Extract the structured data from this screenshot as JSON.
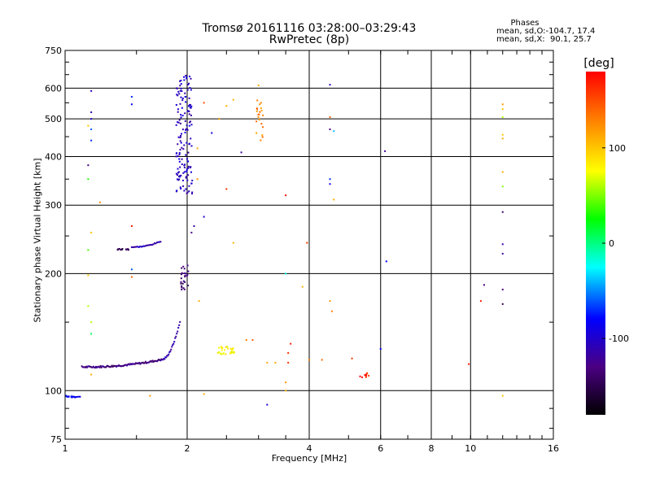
{
  "chart_data": {
    "type": "scatter",
    "title": "Tromsø 20161116 03:28:00–03:29:43",
    "subtitle": "RwPretec (8p)",
    "xlabel": "Frequency [MHz]",
    "ylabel": "Stationary phase Virtual Height [km]",
    "x_scale": "log2",
    "y_scale": "log",
    "xlim": [
      1,
      16
    ],
    "ylim": [
      75,
      750
    ],
    "x_ticks": [
      1,
      2,
      4,
      6,
      8,
      10,
      16
    ],
    "x_tick_labels": [
      "1",
      "2",
      "4",
      "6",
      "8",
      "10",
      "16"
    ],
    "y_ticks": [
      75,
      100,
      200,
      300,
      400,
      500,
      600,
      750
    ],
    "y_tick_labels": [
      "75",
      "100",
      "200",
      "300",
      "400",
      "500",
      "600",
      "750"
    ],
    "grid": true,
    "colorbar": {
      "label": "[deg]",
      "range": [
        -180,
        180
      ],
      "ticks": [
        100,
        0,
        -100
      ],
      "tick_labels": [
        "100",
        "0",
        "-100"
      ]
    },
    "phases_box": {
      "title": "Phases",
      "o_line": "mean, sd,O:-104.7, 17.4",
      "x_line": "mean, sd,X:  90.1, 25.7"
    },
    "traces": [
      {
        "x_range": [
          1.0,
          1.09
        ],
        "y_range": [
          96,
          97
        ],
        "count": 20,
        "phase": -80
      },
      {
        "x_range": [
          1.1,
          1.72
        ],
        "y_range": [
          115,
          120
        ],
        "count": 90,
        "phase": -130,
        "trend": "rising"
      },
      {
        "x_range": [
          1.72,
          1.92
        ],
        "y_range": [
          120,
          150
        ],
        "count": 25,
        "phase": -115,
        "trend": "rising"
      },
      {
        "x_range": [
          1.93,
          2.02
        ],
        "y_range": [
          182,
          210
        ],
        "count": 25,
        "phase": -135
      },
      {
        "x_range": [
          1.34,
          1.44
        ],
        "y_range": [
          230,
          232
        ],
        "count": 14,
        "phase": -140
      },
      {
        "x_range": [
          1.46,
          1.72
        ],
        "y_range": [
          234,
          242
        ],
        "count": 25,
        "phase": -110,
        "trend": "rising"
      },
      {
        "x_range": [
          1.88,
          2.06
        ],
        "y_range": [
          320,
          650
        ],
        "count": 150,
        "phase": -105
      },
      {
        "x_range": [
          2.38,
          2.62
        ],
        "y_range": [
          124,
          130
        ],
        "count": 30,
        "phase": 80
      },
      {
        "x_range": [
          2.95,
          3.08
        ],
        "y_range": [
          440,
          560
        ],
        "count": 22,
        "phase": 130
      },
      {
        "x_range": [
          5.3,
          5.65
        ],
        "y_range": [
          108,
          111
        ],
        "count": 10,
        "phase": 170
      }
    ],
    "scattered_points": [
      {
        "x": 1.16,
        "y": 590,
        "phase": -110
      },
      {
        "x": 1.16,
        "y": 520,
        "phase": -110
      },
      {
        "x": 1.16,
        "y": 500,
        "phase": -100
      },
      {
        "x": 1.16,
        "y": 470,
        "phase": -60
      },
      {
        "x": 1.16,
        "y": 440,
        "phase": -70
      },
      {
        "x": 1.14,
        "y": 480,
        "phase": 100
      },
      {
        "x": 1.14,
        "y": 380,
        "phase": -130
      },
      {
        "x": 1.14,
        "y": 350,
        "phase": 30
      },
      {
        "x": 1.46,
        "y": 570,
        "phase": -70
      },
      {
        "x": 1.46,
        "y": 545,
        "phase": -80
      },
      {
        "x": 1.46,
        "y": 265,
        "phase": 170
      },
      {
        "x": 1.46,
        "y": 205,
        "phase": -60
      },
      {
        "x": 1.46,
        "y": 196,
        "phase": 140
      },
      {
        "x": 1.14,
        "y": 230,
        "phase": 40
      },
      {
        "x": 1.14,
        "y": 198,
        "phase": 100
      },
      {
        "x": 1.14,
        "y": 165,
        "phase": 60
      },
      {
        "x": 1.16,
        "y": 150,
        "phase": 60
      },
      {
        "x": 1.16,
        "y": 140,
        "phase": 10
      },
      {
        "x": 1.16,
        "y": 255,
        "phase": 100
      },
      {
        "x": 1.22,
        "y": 305,
        "phase": 120
      },
      {
        "x": 1.16,
        "y": 110,
        "phase": 110
      },
      {
        "x": 1.62,
        "y": 97,
        "phase": 120
      },
      {
        "x": 2.2,
        "y": 98,
        "phase": 110
      },
      {
        "x": 2.12,
        "y": 420,
        "phase": 110
      },
      {
        "x": 2.12,
        "y": 350,
        "phase": 120
      },
      {
        "x": 2.2,
        "y": 550,
        "phase": 150
      },
      {
        "x": 2.08,
        "y": 265,
        "phase": -120
      },
      {
        "x": 2.05,
        "y": 255,
        "phase": -130
      },
      {
        "x": 2.2,
        "y": 280,
        "phase": -100
      },
      {
        "x": 2.14,
        "y": 170,
        "phase": 110
      },
      {
        "x": 2.3,
        "y": 460,
        "phase": -90
      },
      {
        "x": 2.72,
        "y": 410,
        "phase": -120
      },
      {
        "x": 2.6,
        "y": 560,
        "phase": 110
      },
      {
        "x": 2.5,
        "y": 540,
        "phase": 110
      },
      {
        "x": 2.5,
        "y": 330,
        "phase": 160
      },
      {
        "x": 2.6,
        "y": 240,
        "phase": 110
      },
      {
        "x": 2.4,
        "y": 500,
        "phase": 120
      },
      {
        "x": 2.9,
        "y": 135,
        "phase": 140
      },
      {
        "x": 2.8,
        "y": 135,
        "phase": 130
      },
      {
        "x": 3.0,
        "y": 610,
        "phase": 110
      },
      {
        "x": 3.15,
        "y": 118,
        "phase": 110
      },
      {
        "x": 3.3,
        "y": 118,
        "phase": 110
      },
      {
        "x": 3.15,
        "y": 92,
        "phase": -100
      },
      {
        "x": 3.5,
        "y": 318,
        "phase": 175
      },
      {
        "x": 3.5,
        "y": 200,
        "phase": -20
      },
      {
        "x": 3.5,
        "y": 105,
        "phase": 120
      },
      {
        "x": 3.5,
        "y": 100,
        "phase": 110
      },
      {
        "x": 3.55,
        "y": 125,
        "phase": 160
      },
      {
        "x": 3.55,
        "y": 118,
        "phase": 160
      },
      {
        "x": 3.6,
        "y": 132,
        "phase": 170
      },
      {
        "x": 3.85,
        "y": 185,
        "phase": 110
      },
      {
        "x": 3.95,
        "y": 240,
        "phase": 160
      },
      {
        "x": 4.0,
        "y": 120,
        "phase": 130
      },
      {
        "x": 4.5,
        "y": 612,
        "phase": -110
      },
      {
        "x": 4.5,
        "y": 470,
        "phase": -130
      },
      {
        "x": 4.6,
        "y": 465,
        "phase": -40
      },
      {
        "x": 4.5,
        "y": 350,
        "phase": -70
      },
      {
        "x": 4.5,
        "y": 340,
        "phase": -90
      },
      {
        "x": 4.6,
        "y": 310,
        "phase": 110
      },
      {
        "x": 4.5,
        "y": 170,
        "phase": 120
      },
      {
        "x": 4.55,
        "y": 160,
        "phase": 130
      },
      {
        "x": 4.3,
        "y": 120,
        "phase": 140
      },
      {
        "x": 4.5,
        "y": 505,
        "phase": 140
      },
      {
        "x": 5.1,
        "y": 121,
        "phase": 160
      },
      {
        "x": 6.0,
        "y": 128,
        "phase": -80
      },
      {
        "x": 6.15,
        "y": 413,
        "phase": -120
      },
      {
        "x": 6.2,
        "y": 215,
        "phase": -80
      },
      {
        "x": 9.9,
        "y": 117,
        "phase": 170
      },
      {
        "x": 10.8,
        "y": 187,
        "phase": -130
      },
      {
        "x": 10.6,
        "y": 170,
        "phase": 170
      },
      {
        "x": 12.0,
        "y": 545,
        "phase": 120
      },
      {
        "x": 12.0,
        "y": 530,
        "phase": 100
      },
      {
        "x": 12.0,
        "y": 505,
        "phase": 60
      },
      {
        "x": 12.0,
        "y": 455,
        "phase": 100
      },
      {
        "x": 12.0,
        "y": 445,
        "phase": 110
      },
      {
        "x": 12.0,
        "y": 365,
        "phase": 110
      },
      {
        "x": 12.0,
        "y": 335,
        "phase": 50
      },
      {
        "x": 12.0,
        "y": 288,
        "phase": -140
      },
      {
        "x": 12.0,
        "y": 238,
        "phase": -110
      },
      {
        "x": 12.0,
        "y": 225,
        "phase": -120
      },
      {
        "x": 12.0,
        "y": 182,
        "phase": -130
      },
      {
        "x": 12.0,
        "y": 167,
        "phase": -150
      },
      {
        "x": 12.0,
        "y": 97,
        "phase": 100
      }
    ]
  }
}
